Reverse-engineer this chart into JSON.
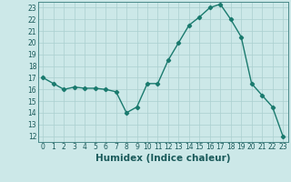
{
  "x": [
    0,
    1,
    2,
    3,
    4,
    5,
    6,
    7,
    8,
    9,
    10,
    11,
    12,
    13,
    14,
    15,
    16,
    17,
    18,
    19,
    20,
    21,
    22,
    23
  ],
  "y": [
    17.0,
    16.5,
    16.0,
    16.2,
    16.1,
    16.1,
    16.0,
    15.8,
    14.0,
    14.5,
    16.5,
    16.5,
    18.5,
    20.0,
    21.5,
    22.2,
    23.0,
    23.3,
    22.0,
    20.5,
    16.5,
    15.5,
    14.5,
    12.0
  ],
  "line_color": "#1a7a6e",
  "marker": "D",
  "marker_size": 2.2,
  "bg_color": "#cce8e8",
  "grid_color": "#aacfcf",
  "xlabel": "Humidex (Indice chaleur)",
  "ylabel": "",
  "xlim": [
    -0.5,
    23.5
  ],
  "ylim": [
    11.5,
    23.5
  ],
  "yticks": [
    12,
    13,
    14,
    15,
    16,
    17,
    18,
    19,
    20,
    21,
    22,
    23
  ],
  "xticks": [
    0,
    1,
    2,
    3,
    4,
    5,
    6,
    7,
    8,
    9,
    10,
    11,
    12,
    13,
    14,
    15,
    16,
    17,
    18,
    19,
    20,
    21,
    22,
    23
  ],
  "tick_fontsize": 5.5,
  "xlabel_fontsize": 7.5,
  "line_width": 1.0
}
